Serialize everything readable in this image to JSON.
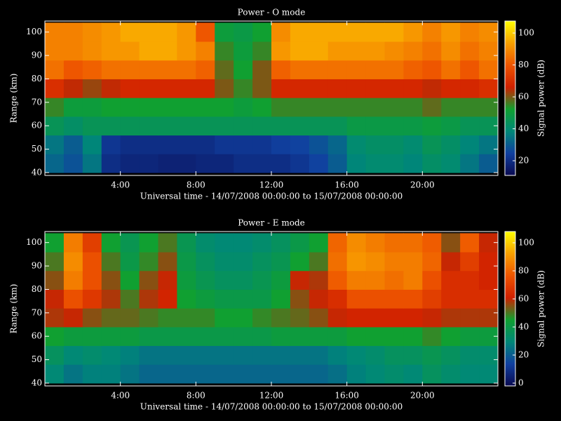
{
  "chart_data": [
    {
      "type": "heatmap",
      "title": "Power - O mode",
      "xlabel": "Universal time - 14/07/2008 00:00:00 to 15/07/2008 00:00:00",
      "ylabel": "Range (km)",
      "zlabel": "Signal power (dB)",
      "x": [
        0.5,
        1.5,
        2.5,
        3.5,
        4.5,
        5.5,
        6.5,
        7.5,
        8.5,
        9.5,
        10.5,
        11.5,
        12.5,
        13.5,
        14.5,
        15.5,
        16.5,
        17.5,
        18.5,
        19.5,
        20.5,
        21.5,
        22.5,
        23.5
      ],
      "y": [
        44,
        52,
        60,
        68,
        76,
        84,
        92,
        100
      ],
      "z": [
        [
          32,
          28,
          35,
          20,
          18,
          18,
          17,
          17,
          18,
          18,
          20,
          20,
          20,
          22,
          25,
          30,
          38,
          40,
          40,
          38,
          42,
          40,
          35,
          30
        ],
        [
          35,
          30,
          38,
          22,
          20,
          20,
          20,
          20,
          20,
          22,
          22,
          22,
          24,
          25,
          28,
          32,
          40,
          42,
          42,
          40,
          45,
          42,
          38,
          35
        ],
        [
          45,
          42,
          45,
          45,
          45,
          45,
          45,
          45,
          45,
          45,
          45,
          45,
          45,
          45,
          45,
          45,
          48,
          48,
          48,
          48,
          50,
          48,
          45,
          45
        ],
        [
          55,
          50,
          50,
          52,
          52,
          52,
          52,
          52,
          52,
          52,
          50,
          52,
          55,
          55,
          55,
          55,
          55,
          55,
          55,
          55,
          58,
          55,
          55,
          55
        ],
        [
          70,
          65,
          62,
          65,
          68,
          68,
          68,
          68,
          68,
          60,
          55,
          60,
          68,
          68,
          68,
          68,
          68,
          68,
          68,
          68,
          65,
          68,
          68,
          70
        ],
        [
          85,
          80,
          82,
          85,
          85,
          85,
          85,
          85,
          82,
          58,
          52,
          60,
          82,
          85,
          85,
          85,
          85,
          85,
          85,
          82,
          80,
          85,
          80,
          85
        ],
        [
          88,
          88,
          90,
          92,
          92,
          95,
          95,
          92,
          88,
          55,
          50,
          55,
          92,
          95,
          95,
          92,
          92,
          92,
          90,
          88,
          85,
          90,
          85,
          88
        ],
        [
          88,
          88,
          90,
          92,
          95,
          95,
          95,
          92,
          80,
          50,
          48,
          52,
          90,
          95,
          95,
          95,
          95,
          95,
          95,
          92,
          88,
          92,
          88,
          90
        ]
      ],
      "xlim": [
        0,
        24
      ],
      "ylim": [
        38.8,
        104.7
      ],
      "zlim": [
        10.8,
        107.5
      ],
      "xticks": [
        {
          "value": 4,
          "label": "4:00"
        },
        {
          "value": 8,
          "label": "8:00"
        },
        {
          "value": 12,
          "label": "12:00"
        },
        {
          "value": 16,
          "label": "16:00"
        },
        {
          "value": 20,
          "label": "20:00"
        }
      ],
      "yticks": [
        40,
        50,
        60,
        70,
        80,
        90,
        100
      ],
      "zticks": [
        20,
        40,
        60,
        80,
        100
      ],
      "colorscale": [
        "#0a0a50",
        "#1040a0",
        "#008878",
        "#10a030",
        "#d02000",
        "#ee5500",
        "#f8a000",
        "#ffff00"
      ]
    },
    {
      "type": "heatmap",
      "title": "Power - E mode",
      "xlabel": "Universal time - 14/07/2008 00:00:00 to 15/07/2008 00:00:00",
      "ylabel": "Range (km)",
      "zlabel": "Signal power (dB)",
      "x": [
        0.5,
        1.5,
        2.5,
        3.5,
        4.5,
        5.5,
        6.5,
        7.5,
        8.5,
        9.5,
        10.5,
        11.5,
        12.5,
        13.5,
        14.5,
        15.5,
        16.5,
        17.5,
        18.5,
        19.5,
        20.5,
        21.5,
        22.5,
        23.5
      ],
      "y": [
        44,
        52,
        60,
        68,
        76,
        84,
        92,
        100
      ],
      "z": [
        [
          30,
          25,
          28,
          28,
          25,
          22,
          22,
          22,
          22,
          22,
          22,
          22,
          22,
          22,
          22,
          24,
          28,
          30,
          32,
          30,
          35,
          32,
          30,
          30
        ],
        [
          35,
          30,
          32,
          30,
          28,
          25,
          25,
          25,
          25,
          25,
          25,
          25,
          25,
          25,
          25,
          28,
          30,
          32,
          35,
          35,
          38,
          35,
          32,
          32
        ],
        [
          45,
          42,
          42,
          42,
          42,
          40,
          40,
          40,
          40,
          40,
          40,
          40,
          42,
          42,
          42,
          42,
          45,
          45,
          45,
          45,
          48,
          45,
          42,
          42
        ],
        [
          58,
          60,
          55,
          52,
          52,
          50,
          48,
          48,
          48,
          45,
          45,
          48,
          50,
          52,
          55,
          60,
          62,
          62,
          62,
          62,
          60,
          58,
          58,
          58
        ],
        [
          60,
          75,
          68,
          58,
          50,
          58,
          62,
          45,
          42,
          40,
          40,
          40,
          45,
          55,
          60,
          65,
          75,
          75,
          75,
          75,
          70,
          65,
          65,
          65
        ],
        [
          55,
          85,
          75,
          55,
          45,
          55,
          60,
          42,
          38,
          35,
          35,
          38,
          42,
          60,
          58,
          78,
          85,
          85,
          82,
          85,
          75,
          65,
          65,
          62
        ],
        [
          50,
          88,
          75,
          50,
          40,
          48,
          55,
          40,
          35,
          32,
          32,
          35,
          38,
          45,
          50,
          82,
          90,
          88,
          85,
          85,
          80,
          60,
          70,
          62
        ],
        [
          45,
          85,
          70,
          45,
          38,
          45,
          50,
          38,
          32,
          30,
          30,
          32,
          35,
          40,
          45,
          80,
          88,
          85,
          82,
          82,
          78,
          55,
          78,
          60
        ]
      ],
      "xlim": [
        0,
        24
      ],
      "ylim": [
        38.8,
        104.7
      ],
      "zlim": [
        -2,
        108
      ],
      "xticks": [
        {
          "value": 4,
          "label": "4:00"
        },
        {
          "value": 8,
          "label": "8:00"
        },
        {
          "value": 12,
          "label": "12:00"
        },
        {
          "value": 16,
          "label": "16:00"
        },
        {
          "value": 20,
          "label": "20:00"
        }
      ],
      "yticks": [
        40,
        50,
        60,
        70,
        80,
        90,
        100
      ],
      "zticks": [
        0,
        20,
        40,
        60,
        80,
        100
      ],
      "colorscale": [
        "#0a0a50",
        "#1040a0",
        "#008878",
        "#10a030",
        "#d02000",
        "#ee5500",
        "#f8a000",
        "#ffff00"
      ]
    }
  ]
}
